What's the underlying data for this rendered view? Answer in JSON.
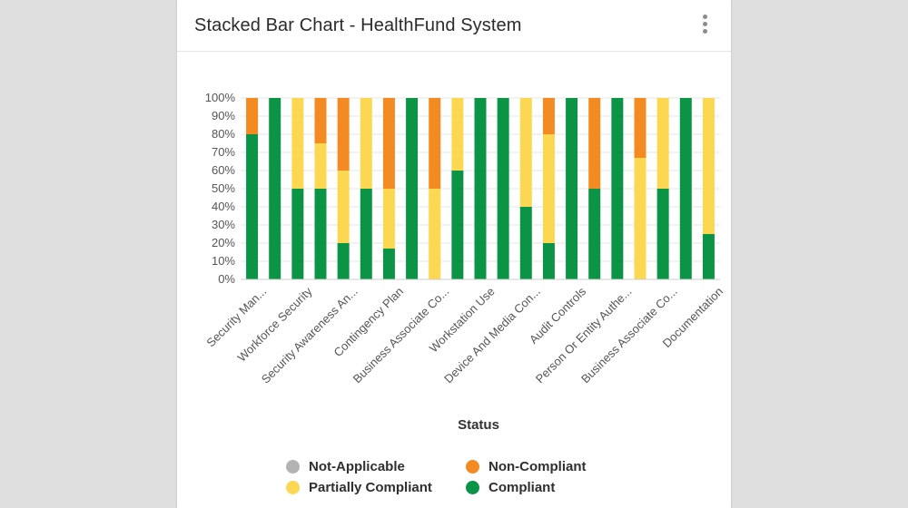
{
  "card": {
    "title": "Stacked Bar Chart - HealthFund System",
    "menu_icon": "more-vert-icon"
  },
  "colors": {
    "not_applicable": "#b3b3b3",
    "non_compliant": "#f38a22",
    "partially_compliant": "#fcd752",
    "compliant": "#0b9446",
    "grid": "#e6e6e6",
    "axis_text": "#555555"
  },
  "chart_data": {
    "type": "bar",
    "stacked": true,
    "percent": true,
    "xlabel": "Status",
    "ylabel": "",
    "ylim": [
      0,
      100
    ],
    "y_ticks": [
      "0%",
      "10%",
      "20%",
      "30%",
      "40%",
      "50%",
      "60%",
      "70%",
      "80%",
      "90%",
      "100%"
    ],
    "grid": true,
    "legend_position": "bottom",
    "categories": [
      "Security Man...",
      "Workforce Security",
      "Security Awareness An...",
      "Contingency Plan",
      "Business Associate Co...",
      "Workstation Use",
      "Device And Media Con...",
      "Audit Controls",
      "Person Or Entity Authe...",
      "Business Associate Co...",
      "Documentation"
    ],
    "bars": [
      {
        "compliant": 80,
        "partially_compliant": 0,
        "non_compliant": 20,
        "not_applicable": 0
      },
      {
        "compliant": 100,
        "partially_compliant": 0,
        "non_compliant": 0,
        "not_applicable": 0
      },
      {
        "compliant": 50,
        "partially_compliant": 50,
        "non_compliant": 0,
        "not_applicable": 0
      },
      {
        "compliant": 50,
        "partially_compliant": 25,
        "non_compliant": 25,
        "not_applicable": 0
      },
      {
        "compliant": 20,
        "partially_compliant": 40,
        "non_compliant": 40,
        "not_applicable": 0
      },
      {
        "compliant": 50,
        "partially_compliant": 50,
        "non_compliant": 0,
        "not_applicable": 0
      },
      {
        "compliant": 17,
        "partially_compliant": 33,
        "non_compliant": 50,
        "not_applicable": 0
      },
      {
        "compliant": 100,
        "partially_compliant": 0,
        "non_compliant": 0,
        "not_applicable": 0
      },
      {
        "compliant": 0,
        "partially_compliant": 50,
        "non_compliant": 50,
        "not_applicable": 0
      },
      {
        "compliant": 60,
        "partially_compliant": 40,
        "non_compliant": 0,
        "not_applicable": 0
      },
      {
        "compliant": 100,
        "partially_compliant": 0,
        "non_compliant": 0,
        "not_applicable": 0
      },
      {
        "compliant": 100,
        "partially_compliant": 0,
        "non_compliant": 0,
        "not_applicable": 0
      },
      {
        "compliant": 40,
        "partially_compliant": 60,
        "non_compliant": 0,
        "not_applicable": 0
      },
      {
        "compliant": 20,
        "partially_compliant": 60,
        "non_compliant": 20,
        "not_applicable": 0
      },
      {
        "compliant": 100,
        "partially_compliant": 0,
        "non_compliant": 0,
        "not_applicable": 0
      },
      {
        "compliant": 50,
        "partially_compliant": 0,
        "non_compliant": 50,
        "not_applicable": 0
      },
      {
        "compliant": 100,
        "partially_compliant": 0,
        "non_compliant": 0,
        "not_applicable": 0
      },
      {
        "compliant": 0,
        "partially_compliant": 67,
        "non_compliant": 33,
        "not_applicable": 0
      },
      {
        "compliant": 50,
        "partially_compliant": 50,
        "non_compliant": 0,
        "not_applicable": 0
      },
      {
        "compliant": 100,
        "partially_compliant": 0,
        "non_compliant": 0,
        "not_applicable": 0
      },
      {
        "compliant": 25,
        "partially_compliant": 75,
        "non_compliant": 0,
        "not_applicable": 0
      }
    ],
    "legend": [
      {
        "key": "not_applicable",
        "name": "Not-Applicable"
      },
      {
        "key": "non_compliant",
        "name": "Non-Compliant"
      },
      {
        "key": "partially_compliant",
        "name": "Partially Compliant"
      },
      {
        "key": "compliant",
        "name": "Compliant"
      }
    ]
  }
}
